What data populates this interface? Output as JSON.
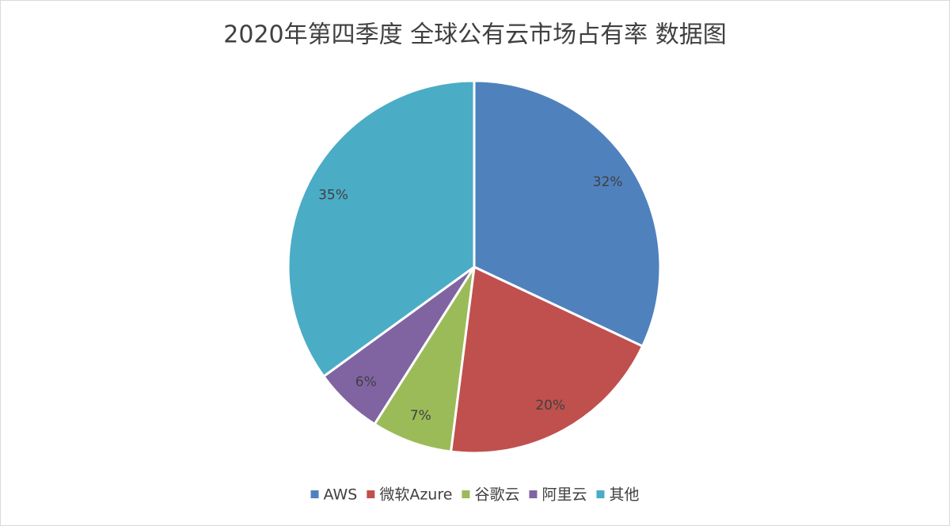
{
  "chart_data": {
    "type": "pie",
    "title": "2020年第四季度 全球公有云市场占有率 数据图",
    "categories": [
      "AWS",
      "微软Azure",
      "谷歌云",
      "阿里云",
      "其他"
    ],
    "values": [
      32,
      20,
      7,
      6,
      35
    ],
    "value_labels": [
      "32%",
      "20%",
      "7%",
      "6%",
      "35%"
    ],
    "colors": [
      "#4f81bd",
      "#c0504d",
      "#9bbb59",
      "#8064a2",
      "#4bacc6"
    ],
    "legend": "bottom"
  }
}
